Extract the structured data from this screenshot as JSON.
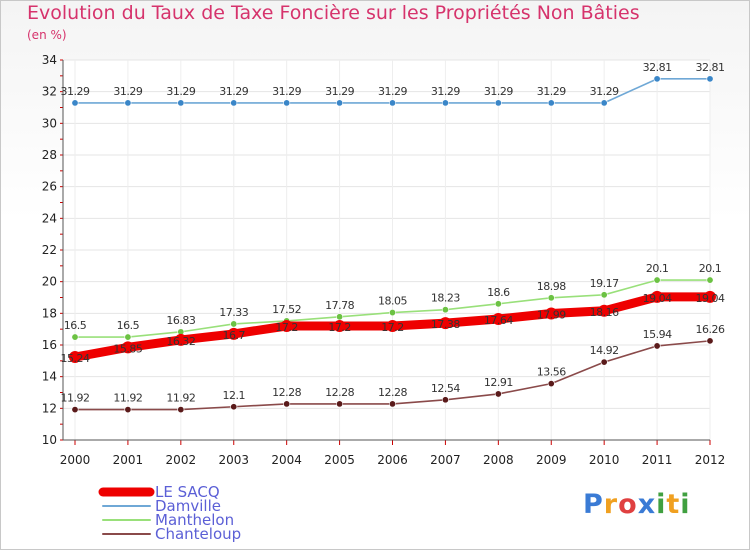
{
  "chart_data": {
    "type": "line",
    "title": "Evolution du Taux de Taxe Foncière sur les Propriétés Non Bâties",
    "unit_label": "(en %)",
    "xlabel": "",
    "ylabel": "",
    "categories": [
      "2000",
      "2001",
      "2002",
      "2003",
      "2004",
      "2005",
      "2006",
      "2007",
      "2008",
      "2009",
      "2010",
      "2011",
      "2012"
    ],
    "ylim": [
      10,
      34
    ],
    "yticks": [
      10,
      12,
      14,
      16,
      18,
      20,
      22,
      24,
      26,
      28,
      30,
      32,
      34
    ],
    "grid": true,
    "legend_position": "bottom-left",
    "series": [
      {
        "name": "Damville",
        "color": "#6fa8d6",
        "marker": "#3a86c8",
        "values": [
          31.29,
          31.29,
          31.29,
          31.29,
          31.29,
          31.29,
          31.29,
          31.29,
          31.29,
          31.29,
          31.29,
          32.81,
          32.81
        ],
        "labels": [
          "31.29",
          "31.29",
          "31.29",
          "31.29",
          "31.29",
          "31.29",
          "31.29",
          "31.29",
          "31.29",
          "31.29",
          "31.29",
          "32.81",
          "32.81"
        ]
      },
      {
        "name": "Manthelon",
        "color": "#99e07a",
        "marker": "#6cc243",
        "values": [
          16.5,
          16.5,
          16.83,
          17.33,
          17.52,
          17.78,
          18.05,
          18.23,
          18.6,
          18.98,
          19.17,
          20.1,
          20.1
        ],
        "labels": [
          "16.5",
          "16.5",
          "16.83",
          "17.33",
          "17.52",
          "17.78",
          "18.05",
          "18.23",
          "18.6",
          "18.98",
          "19.17",
          "20.1",
          "20.1"
        ]
      },
      {
        "name": "LE SACQ",
        "color": "#ee0000",
        "marker": "#ee0000",
        "values": [
          15.24,
          15.85,
          16.32,
          16.7,
          17.2,
          17.2,
          17.2,
          17.38,
          17.64,
          17.99,
          18.16,
          19.04,
          19.04
        ],
        "labels": [
          "15.24",
          "15.85",
          "16.32",
          "16.7",
          "17.2",
          "17.2",
          "17.2",
          "17.38",
          "17.64",
          "17.99",
          "18.16",
          "19.04",
          "19.04"
        ]
      },
      {
        "name": "Chanteloup",
        "color": "#8a4a4a",
        "marker": "#5a1a1a",
        "values": [
          11.92,
          11.92,
          11.92,
          12.1,
          12.28,
          12.28,
          12.28,
          12.54,
          12.91,
          13.56,
          14.92,
          15.94,
          16.26
        ],
        "labels": [
          "11.92",
          "11.92",
          "11.92",
          "12.1",
          "12.28",
          "12.28",
          "12.28",
          "12.54",
          "12.91",
          "13.56",
          "14.92",
          "15.94",
          "16.26"
        ]
      }
    ],
    "legend": [
      "LE SACQ",
      "Damville",
      "Manthelon",
      "Chanteloup"
    ]
  },
  "branding": {
    "letters": [
      "P",
      "r",
      "o",
      "x",
      "i",
      "t",
      "i"
    ],
    "colors": [
      "#3a7bd5",
      "#f0a020",
      "#e04040",
      "#3a7bd5",
      "#40a040",
      "#f0a020",
      "#40a040"
    ]
  }
}
